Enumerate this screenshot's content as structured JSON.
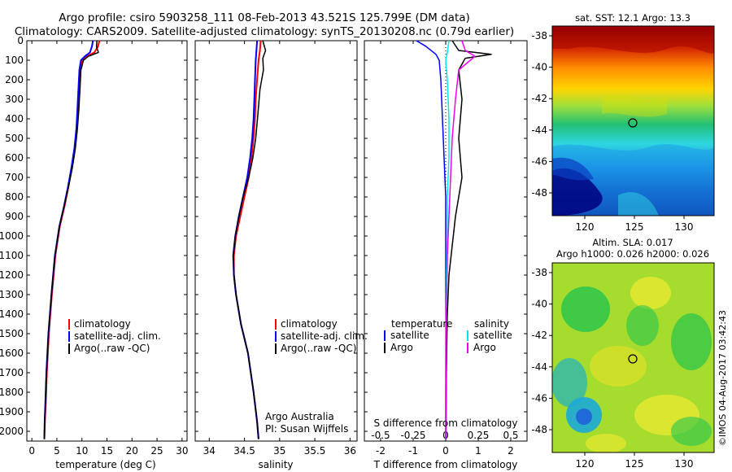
{
  "header": {
    "line1": "Argo profile: csiro 5903258_111 08-Feb-2013 43.521S 125.799E (DM data)",
    "line2": "Climatology: CARS2009. Satellite-adjusted climatology: synTS_20130208.nc (0.79d earlier)"
  },
  "side_label": "©IMOS 04-Aug-2017 03:42:43",
  "colors": {
    "climatology": "#ff0000",
    "satellite": "#0000ff",
    "argo": "#000000",
    "sal_satellite": "#00e5ee",
    "sal_argo": "#ee00ee"
  },
  "chart_data": [
    {
      "type": "line",
      "panel": "temperature",
      "xlabel": "temperature (deg C)",
      "xlim": [
        -1,
        31
      ],
      "xticks": [
        0,
        5,
        10,
        15,
        20,
        25,
        30
      ],
      "ylim": [
        0,
        2050
      ],
      "yticks": [
        0,
        100,
        200,
        300,
        400,
        500,
        600,
        700,
        800,
        900,
        1000,
        1100,
        1200,
        1300,
        1400,
        1500,
        1600,
        1700,
        1800,
        1900,
        2000
      ],
      "legend": [
        "climatology",
        "satellite-adj. clim.",
        "Argo(..raw -QC)"
      ],
      "series": [
        {
          "name": "climatology",
          "color": "#ff0000",
          "width": 2,
          "x": [
            13.5,
            13.2,
            12.5,
            11.0,
            10.0,
            9.7,
            9.4,
            9.2,
            9.0,
            8.6,
            8.0,
            7.3,
            6.5,
            5.6,
            4.7,
            4.0,
            3.4,
            3.0,
            2.8,
            2.6,
            2.5
          ],
          "y": [
            0,
            30,
            60,
            80,
            100,
            150,
            250,
            350,
            450,
            550,
            650,
            750,
            850,
            950,
            1100,
            1300,
            1500,
            1700,
            1850,
            1950,
            2040
          ]
        },
        {
          "name": "satellite-adj. clim.",
          "color": "#0000ff",
          "width": 2,
          "x": [
            12.2,
            12.0,
            11.6,
            10.6,
            9.8,
            9.5,
            9.3,
            9.1,
            8.9,
            8.5,
            7.9,
            7.2,
            6.4,
            5.5,
            4.6,
            3.9,
            3.3,
            2.9,
            2.7,
            2.55,
            2.5
          ],
          "y": [
            0,
            30,
            60,
            80,
            100,
            150,
            250,
            350,
            450,
            550,
            650,
            750,
            850,
            950,
            1100,
            1300,
            1500,
            1700,
            1850,
            1950,
            2040
          ]
        },
        {
          "name": "Argo(..raw -QC)",
          "color": "#000000",
          "width": 1.5,
          "x": [
            13.0,
            12.9,
            13.3,
            11.3,
            10.3,
            9.8,
            9.6,
            9.4,
            9.1,
            8.7,
            8.1,
            7.3,
            6.4,
            5.5,
            4.6,
            3.9,
            3.3,
            2.9,
            2.7,
            2.55,
            2.5
          ],
          "y": [
            0,
            30,
            60,
            80,
            100,
            150,
            250,
            350,
            450,
            550,
            650,
            750,
            850,
            950,
            1100,
            1300,
            1500,
            1700,
            1850,
            1950,
            2040
          ]
        }
      ]
    },
    {
      "type": "line",
      "panel": "salinity",
      "xlabel": "salinity",
      "xlim": [
        33.8,
        36.1
      ],
      "xticks": [
        34,
        34.5,
        35,
        35.5,
        36
      ],
      "ylim": [
        0,
        2050
      ],
      "legend": [
        "climatology",
        "satellite-adj. clim.",
        "Argo(..raw -QC)"
      ],
      "annotation": [
        "Argo Australia",
        "PI: Susan Wijffels"
      ],
      "series": [
        {
          "name": "climatology",
          "color": "#ff0000",
          "width": 2,
          "x": [
            34.73,
            34.72,
            34.7,
            34.68,
            34.66,
            34.65,
            34.63,
            34.6,
            34.56,
            34.5,
            34.44,
            34.38,
            34.35,
            34.35,
            34.38,
            34.45,
            34.55,
            34.63,
            34.68,
            34.7
          ],
          "y": [
            0,
            50,
            100,
            200,
            300,
            400,
            500,
            600,
            700,
            800,
            900,
            1000,
            1100,
            1200,
            1300,
            1450,
            1600,
            1800,
            1950,
            2040
          ]
        },
        {
          "name": "satellite-adj. clim.",
          "color": "#0000ff",
          "width": 2,
          "x": [
            34.68,
            34.67,
            34.66,
            34.65,
            34.64,
            34.63,
            34.61,
            34.58,
            34.54,
            34.48,
            34.42,
            34.37,
            34.34,
            34.35,
            34.38,
            34.45,
            34.55,
            34.63,
            34.68,
            34.7
          ],
          "y": [
            0,
            50,
            100,
            200,
            300,
            400,
            500,
            600,
            700,
            800,
            900,
            1000,
            1100,
            1200,
            1300,
            1450,
            1600,
            1800,
            1950,
            2040
          ]
        },
        {
          "name": "Argo(..raw -QC)",
          "color": "#000000",
          "width": 1.5,
          "x": [
            34.76,
            34.8,
            34.76,
            34.77,
            34.72,
            34.69,
            34.66,
            34.62,
            34.56,
            34.48,
            34.42,
            34.37,
            34.34,
            34.35,
            34.38,
            34.45,
            34.55,
            34.63,
            34.68,
            34.7
          ],
          "y": [
            0,
            50,
            90,
            150,
            250,
            380,
            500,
            600,
            700,
            800,
            900,
            1000,
            1100,
            1200,
            1300,
            1450,
            1600,
            1800,
            1950,
            2040
          ]
        }
      ]
    },
    {
      "type": "line",
      "panel": "difference",
      "xlabel": "T difference from climatology",
      "xlabel_top": "S difference from climatology",
      "xlim": [
        -2.5,
        2.5
      ],
      "xticks": [
        -2,
        -1,
        0,
        1,
        2
      ],
      "xticks_top": [
        -0.5,
        -0.25,
        0,
        0.25,
        0.5
      ],
      "ylim": [
        0,
        2050
      ],
      "legend_titles": [
        "temperature",
        "salinity"
      ],
      "legend": [
        "satellite",
        "Argo",
        "satellite",
        "Argo"
      ],
      "series": [
        {
          "name": "satellite",
          "color": "#0000ff",
          "width": 1.5,
          "x": [
            -0.9,
            -0.6,
            -0.3,
            -0.2,
            -0.15,
            -0.1,
            -0.05,
            0,
            0,
            0,
            0,
            0,
            0
          ],
          "y": [
            0,
            30,
            70,
            100,
            200,
            400,
            600,
            800,
            1000,
            1200,
            1400,
            1700,
            2040
          ]
        },
        {
          "name": "Argo",
          "color": "#000000",
          "width": 1.5,
          "x": [
            0.2,
            0.4,
            1.4,
            0.6,
            0.4,
            0.5,
            0.4,
            0.5,
            0.3,
            0.2,
            0.1,
            0.05,
            0.02,
            0.01
          ],
          "y": [
            0,
            50,
            70,
            90,
            150,
            300,
            500,
            700,
            900,
            1050,
            1200,
            1400,
            1700,
            2040
          ]
        },
        {
          "name": "satellite",
          "color": "#00e5ee",
          "width": 1.5,
          "x": [
            0.1,
            0.05,
            0,
            0.05,
            0.1,
            0.1,
            0.05,
            0.05,
            0.02,
            0,
            0
          ],
          "y": [
            0,
            60,
            100,
            200,
            400,
            600,
            800,
            1000,
            1200,
            1500,
            2040
          ]
        },
        {
          "name": "Argo",
          "color": "#ee00ee",
          "width": 1.5,
          "x": [
            0.5,
            0.6,
            0.9,
            0.4,
            0.3,
            0.2,
            0.15,
            0.1,
            0.05,
            0.02,
            0
          ],
          "y": [
            0,
            50,
            80,
            150,
            300,
            500,
            700,
            900,
            1100,
            1400,
            2040
          ]
        }
      ]
    }
  ],
  "maps": [
    {
      "title": "sat. SST: 12.1  Argo: 13.3",
      "lat_ticks": [
        "-38",
        "-40",
        "-42",
        "-44",
        "-46",
        "-48"
      ],
      "lon_ticks": [
        "120",
        "125",
        "130"
      ],
      "marker": {
        "lon": 125.8,
        "lat": -43.5
      }
    },
    {
      "title_line1": "Altim. SLA: 0.017",
      "title_line2": "Argo h1000: 0.026 h2000: 0.026",
      "lat_ticks": [
        "-38",
        "-40",
        "-42",
        "-44",
        "-46",
        "-48"
      ],
      "lon_ticks": [
        "120",
        "125",
        "130"
      ],
      "marker": {
        "lon": 125.8,
        "lat": -43.5
      }
    }
  ]
}
